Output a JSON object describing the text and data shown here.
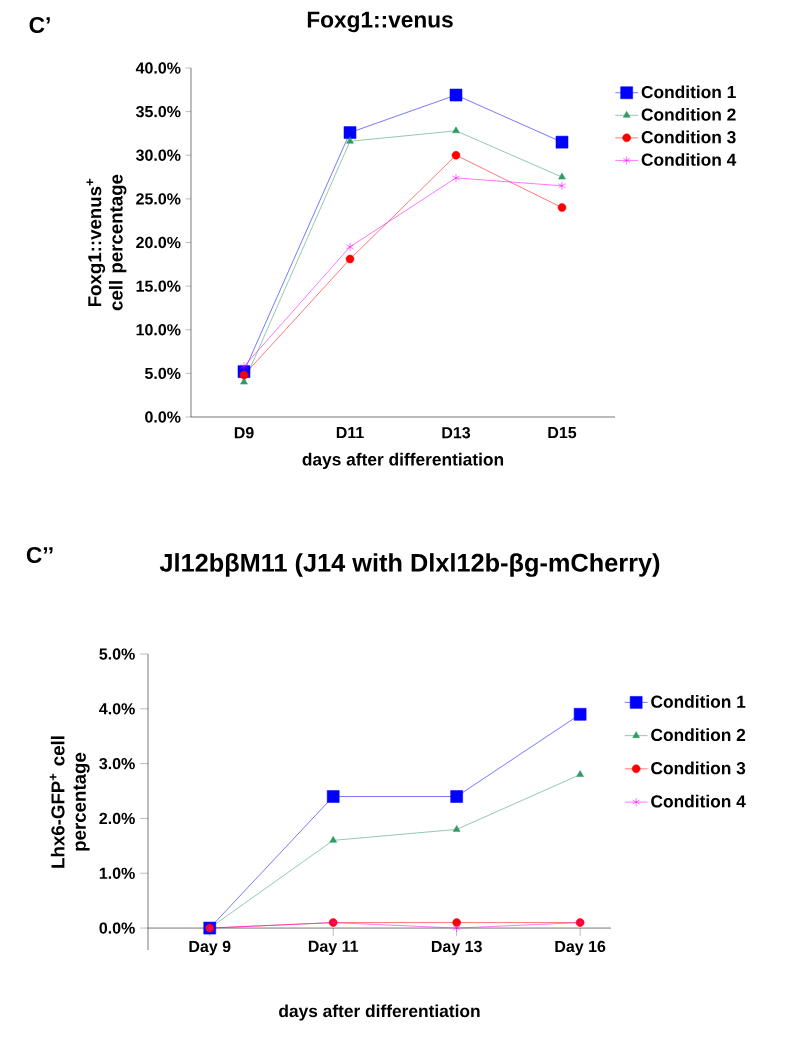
{
  "chart_data": [
    {
      "type": "line",
      "title": "Foxg1::venus",
      "xlabel": "days after differentiation",
      "ylabel": "Foxg1::venus$^{+}$ cell percentage",
      "annotations": [
        "C’"
      ],
      "categories": [
        "D9",
        "D11",
        "D13",
        "D15"
      ],
      "series": [
        {
          "name": "Condition 1",
          "color": "#0000ff",
          "marker": "square",
          "values": [
            5.2,
            32.6,
            36.9,
            31.5
          ]
        },
        {
          "name": "Condition 2",
          "color": "#339966",
          "marker": "triangle",
          "values": [
            4.0,
            31.6,
            32.8,
            27.5
          ]
        },
        {
          "name": "Condition 3",
          "color": "#ff0000",
          "marker": "circle",
          "values": [
            4.8,
            18.1,
            30.0,
            24.0
          ]
        },
        {
          "name": "Condition 4",
          "color": "#ff00ff",
          "marker": "cross",
          "values": [
            5.8,
            19.5,
            27.4,
            26.5
          ]
        }
      ],
      "ylim": [
        0,
        40
      ],
      "yticks": [
        {
          "value": 0,
          "label": "0.0%"
        },
        {
          "value": 5,
          "label": "5.0%"
        },
        {
          "value": 10,
          "label": "10.0%"
        },
        {
          "value": 15,
          "label": "15.0%"
        },
        {
          "value": 20,
          "label": "20.0%"
        },
        {
          "value": 25,
          "label": "25.0%"
        },
        {
          "value": 30,
          "label": "30.0%"
        },
        {
          "value": 35,
          "label": "35.0%"
        },
        {
          "value": 40,
          "label": "40.0%"
        }
      ],
      "legend": "right"
    },
    {
      "type": "line",
      "title": "Jl12bβM11 (J14 with Dlxl12b-βg-mCherry)",
      "xlabel": "days after differentiation",
      "ylabel": "Lhx6-GFP$^{+}$ cell percentage",
      "annotations": [
        "C’’"
      ],
      "categories": [
        "Day 9",
        "Day 11",
        "Day 13",
        "Day 16"
      ],
      "series": [
        {
          "name": "Condition 1",
          "color": "#0000ff",
          "marker": "square",
          "values": [
            0.0,
            2.4,
            2.4,
            3.9
          ]
        },
        {
          "name": "Condition 2",
          "color": "#339966",
          "marker": "triangle",
          "values": [
            0.0,
            1.6,
            1.8,
            2.8
          ]
        },
        {
          "name": "Condition 3",
          "color": "#ff0000",
          "marker": "circle",
          "values": [
            0.0,
            0.1,
            0.1,
            0.1
          ]
        },
        {
          "name": "Condition 4",
          "color": "#ff00ff",
          "marker": "cross",
          "values": [
            0.0,
            0.1,
            0.0,
            0.1
          ]
        }
      ],
      "ylim": [
        -0.4,
        5
      ],
      "yticks": [
        {
          "value": 0,
          "label": "0.0%"
        },
        {
          "value": 1,
          "label": "1.0%"
        },
        {
          "value": 2,
          "label": "2.0%"
        },
        {
          "value": 3,
          "label": "3.0%"
        },
        {
          "value": 4,
          "label": "4.0%"
        },
        {
          "value": 5,
          "label": "5.0%"
        }
      ],
      "legend": "right"
    }
  ]
}
